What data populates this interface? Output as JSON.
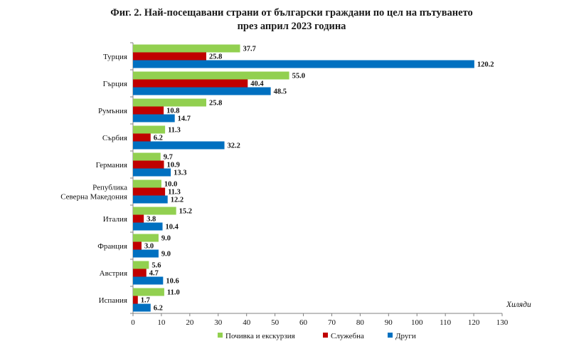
{
  "chart_data": {
    "type": "bar",
    "orientation": "horizontal",
    "title_line1": "Фиг. 2. Най-посещавани страни от български граждани по цел на пътуването",
    "title_line2": "през април 2023 година",
    "unit_label": "Хиляди",
    "categories": [
      [
        "Турция"
      ],
      [
        "Гърция"
      ],
      [
        "Румъния"
      ],
      [
        "Сърбия"
      ],
      [
        "Германия"
      ],
      [
        "Република",
        "Северна Македония"
      ],
      [
        "Италия"
      ],
      [
        "Франция"
      ],
      [
        "Австрия"
      ],
      [
        "Испания"
      ]
    ],
    "series": [
      {
        "name": "Почивка и екскурзия",
        "color": "#92d050",
        "values": [
          37.7,
          55.0,
          25.8,
          11.3,
          9.7,
          10.0,
          15.2,
          9.0,
          5.6,
          11.0
        ],
        "labels": [
          "37.7",
          "55.0",
          "25.8",
          "11.3",
          "9.7",
          "10.0",
          "15.2",
          "9.0",
          "5.6",
          "11.0"
        ]
      },
      {
        "name": "Служебна",
        "color": "#c00000",
        "values": [
          25.8,
          40.4,
          10.8,
          6.2,
          10.9,
          11.3,
          3.8,
          3.0,
          4.7,
          1.7
        ],
        "labels": [
          "25.8",
          "40.4",
          "10.8",
          "6.2",
          "10.9",
          "11.3",
          "3.8",
          "3.0",
          "4.7",
          "1.7"
        ]
      },
      {
        "name": "Други",
        "color": "#0070c0",
        "values": [
          120.2,
          48.5,
          14.7,
          32.2,
          13.3,
          12.2,
          10.4,
          9.0,
          10.6,
          6.2
        ],
        "labels": [
          "120.2",
          "48.5",
          "14.7",
          "32.2",
          "13.3",
          "12.2",
          "10.4",
          "9.0",
          "10.6",
          "6.2"
        ]
      }
    ],
    "xlim": [
      0,
      130
    ],
    "xticks": [
      "0",
      "10",
      "20",
      "30",
      "40",
      "50",
      "60",
      "70",
      "80",
      "90",
      "100",
      "110",
      "120",
      "130"
    ],
    "grid": false,
    "legend_position": "bottom"
  }
}
